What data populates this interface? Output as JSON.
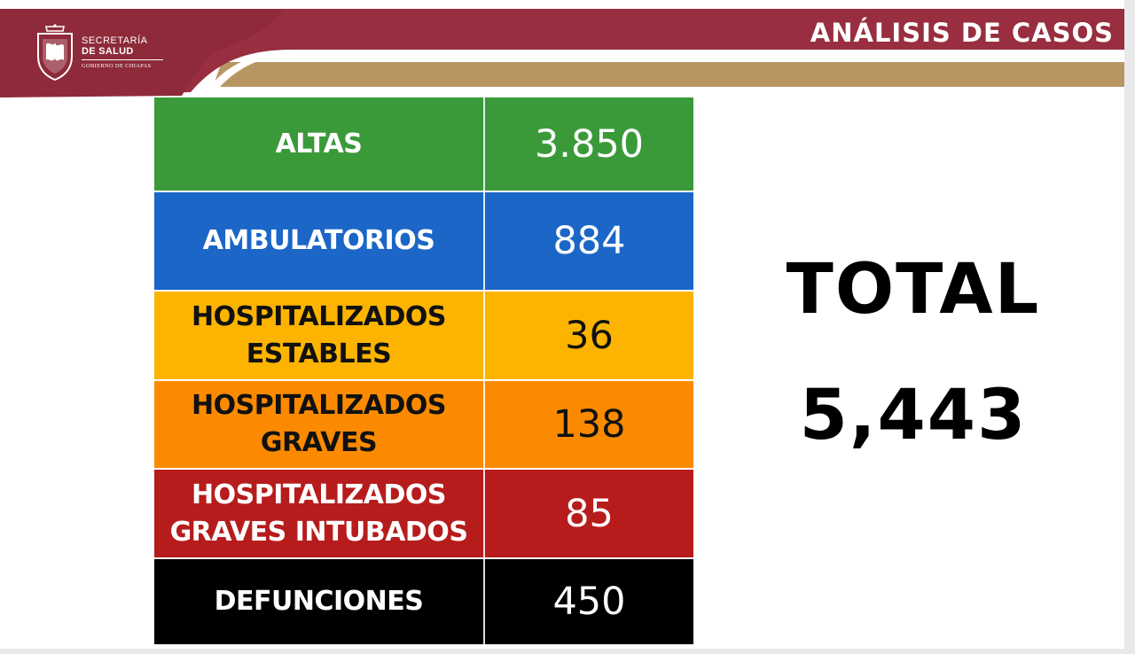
{
  "header": {
    "title": "ANÁLISIS DE CASOS",
    "colors": {
      "primary": "#982e3f",
      "secondary": "#b89664"
    }
  },
  "logo": {
    "line1": "SECRETARÍA",
    "line2": "DE SALUD",
    "line3": "GOBIERNO DE CHIAPAS",
    "icon": "coat-of-arms-icon"
  },
  "table": {
    "rows": [
      {
        "label": "ALTAS",
        "value": "3.850",
        "color": "#3a9a3a",
        "text_color": "#ffffff"
      },
      {
        "label": "AMBULATORIOS",
        "value": "884",
        "color": "#1b66c7",
        "text_color": "#ffffff"
      },
      {
        "label": "HOSPITALIZADOS\nESTABLES",
        "value": "36",
        "color": "#fdb400",
        "text_color": "#111111"
      },
      {
        "label": "HOSPITALIZADOS\nGRAVES",
        "value": "138",
        "color": "#fb8a00",
        "text_color": "#111111"
      },
      {
        "label": "HOSPITALIZADOS\nGRAVES INTUBADOS",
        "value": "85",
        "color": "#b71c1c",
        "text_color": "#ffffff"
      },
      {
        "label": "DEFUNCIONES",
        "value": "450",
        "color": "#000000",
        "text_color": "#ffffff"
      }
    ]
  },
  "total": {
    "label": "TOTAL",
    "value": "5,443"
  }
}
